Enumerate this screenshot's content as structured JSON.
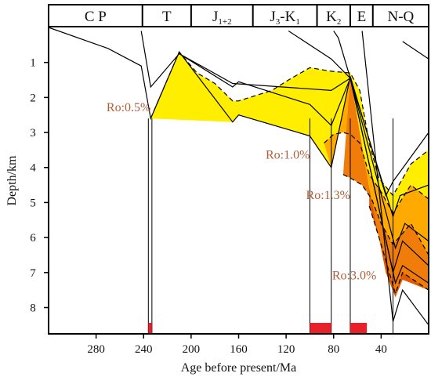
{
  "chart_data": {
    "type": "area",
    "xlabel": "Age before present/Ma",
    "ylabel": "Depth/km",
    "xlim": [
      320,
      0
    ],
    "ylim": [
      0,
      8.75
    ],
    "x_ticks": [
      "280",
      "240",
      "200",
      "160",
      "120",
      "80",
      "40"
    ],
    "x_tick_values": [
      280,
      240,
      200,
      160,
      120,
      80,
      40
    ],
    "y_ticks": [
      "1",
      "2",
      "3",
      "4",
      "5",
      "6",
      "7",
      "8"
    ],
    "y_tick_values": [
      1,
      2,
      3,
      4,
      5,
      6,
      7,
      8
    ],
    "periods": [
      {
        "parts": [
          {
            "t": "C P",
            "sub": false
          }
        ],
        "start": 320,
        "end": 241
      },
      {
        "parts": [
          {
            "t": "T",
            "sub": false
          }
        ],
        "start": 241,
        "end": 200
      },
      {
        "parts": [
          {
            "t": "J",
            "sub": false
          },
          {
            "t": "1+2",
            "sub": true
          }
        ],
        "start": 200,
        "end": 148
      },
      {
        "parts": [
          {
            "t": "J",
            "sub": false
          },
          {
            "t": "3",
            "sub": true
          },
          {
            "t": "-K",
            "sub": false
          },
          {
            "t": "1",
            "sub": true
          }
        ],
        "start": 148,
        "end": 94
      },
      {
        "parts": [
          {
            "t": "K",
            "sub": false
          },
          {
            "t": "2",
            "sub": true
          }
        ],
        "start": 94,
        "end": 66
      },
      {
        "parts": [
          {
            "t": "E",
            "sub": false
          }
        ],
        "start": 66,
        "end": 47
      },
      {
        "parts": [
          {
            "t": "N-Q",
            "sub": false
          }
        ],
        "start": 47,
        "end": 0
      }
    ],
    "burial_curves": [
      [
        [
          320,
          0
        ],
        [
          270,
          0.6
        ],
        [
          242,
          1.1
        ],
        [
          234,
          2.6
        ],
        [
          210,
          0.7
        ],
        [
          165,
          2.7
        ],
        [
          160,
          2.5
        ],
        [
          100,
          3.1
        ],
        [
          82,
          4.0
        ],
        [
          66,
          1.4
        ],
        [
          36,
          4.8
        ],
        [
          30,
          4.4
        ],
        [
          0,
          3.0
        ]
      ],
      [
        [
          242,
          0.1
        ],
        [
          234,
          1.7
        ],
        [
          210,
          0.75
        ],
        [
          165,
          1.7
        ],
        [
          160,
          1.55
        ],
        [
          100,
          2.2
        ],
        [
          82,
          2.8
        ],
        [
          66,
          1.45
        ],
        [
          30,
          5.4
        ],
        [
          24,
          4.8
        ],
        [
          0,
          4.5
        ]
      ],
      [
        [
          210,
          0.75
        ],
        [
          165,
          1.6
        ],
        [
          82,
          1.8
        ],
        [
          66,
          1.45
        ],
        [
          28,
          6.3
        ],
        [
          20,
          5.6
        ],
        [
          0,
          6.1
        ]
      ],
      [
        [
          118,
          0.1
        ],
        [
          82,
          0.9
        ],
        [
          66,
          1.45
        ],
        [
          30,
          7.0
        ],
        [
          22,
          6.1
        ],
        [
          0,
          6.8
        ]
      ],
      [
        [
          80,
          0.1
        ],
        [
          76,
          0.3
        ],
        [
          66,
          1.45
        ],
        [
          28,
          7.3
        ],
        [
          22,
          6.8
        ],
        [
          0,
          7.3
        ]
      ],
      [
        [
          56,
          0.1
        ],
        [
          30,
          8.4
        ],
        [
          22,
          7.5
        ],
        [
          0,
          8.5
        ]
      ],
      [
        [
          22,
          0.4
        ],
        [
          0,
          0.9
        ]
      ]
    ],
    "ro_zones": [
      {
        "label": "Ro:0.5%",
        "color": "#ffee00",
        "boundary": [
          [
            234,
            2.6
          ],
          [
            224,
            1.8
          ],
          [
            210,
            0.7
          ],
          [
            195,
            1.3
          ],
          [
            180,
            1.6
          ],
          [
            165,
            2.1
          ],
          [
            160,
            2.1
          ],
          [
            132,
            1.8
          ],
          [
            118,
            1.5
          ],
          [
            100,
            1.15
          ],
          [
            82,
            1.25
          ],
          [
            66,
            1.3
          ],
          [
            58,
            1.8
          ],
          [
            50,
            3.3
          ],
          [
            42,
            4.3
          ],
          [
            30,
            4.8
          ],
          [
            15,
            3.9
          ],
          [
            0,
            3.5
          ]
        ]
      },
      {
        "label": "Ro:1.0%",
        "color": "#ffaa00",
        "boundary": [
          [
            88,
            3.3
          ],
          [
            80,
            3.05
          ],
          [
            72,
            3.0
          ],
          [
            66,
            3.05
          ],
          [
            58,
            3.3
          ],
          [
            50,
            4.2
          ],
          [
            40,
            4.7
          ],
          [
            30,
            5.3
          ],
          [
            15,
            4.5
          ],
          [
            0,
            4.9
          ]
        ]
      },
      {
        "label": "Ro:1.3%",
        "color": "#f07c0a",
        "boundary": [
          [
            72,
            4.2
          ],
          [
            66,
            4.3
          ],
          [
            56,
            4.5
          ],
          [
            48,
            4.9
          ],
          [
            40,
            5.6
          ],
          [
            30,
            6.2
          ],
          [
            15,
            5.6
          ],
          [
            0,
            6.5
          ]
        ]
      },
      {
        "label": "Ro:3.0%",
        "color": "#e05a05",
        "boundary": [
          [
            50,
            5.1
          ],
          [
            40,
            6.2
          ],
          [
            28,
            7.6
          ],
          [
            22,
            7.0
          ],
          [
            0,
            7.5
          ]
        ]
      }
    ],
    "ro_label_positions": [
      [
        234,
        2.4
      ],
      [
        100,
        3.75
      ],
      [
        66,
        4.9
      ],
      [
        44,
        7.2
      ]
    ],
    "verticals": [
      236,
      233,
      100,
      82,
      66,
      30
    ],
    "red_markers": [
      [
        236,
        233
      ],
      [
        100,
        82
      ],
      [
        66,
        52
      ]
    ]
  }
}
